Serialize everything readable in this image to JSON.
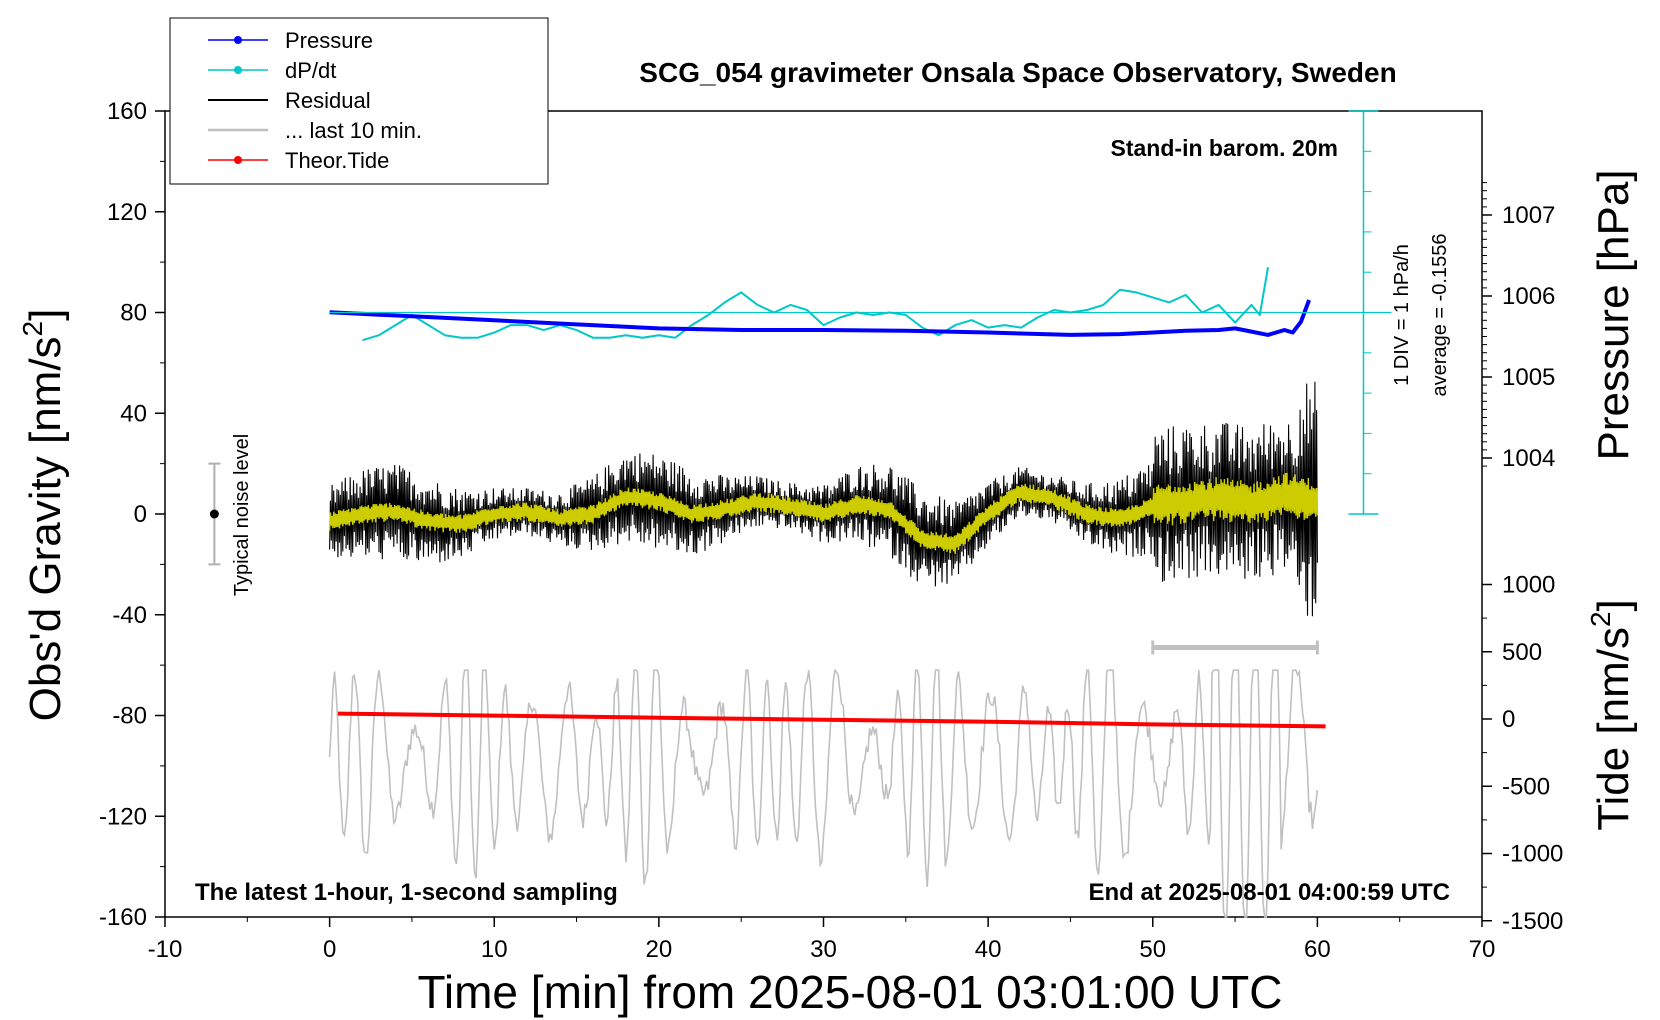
{
  "chart_data": {
    "type": "line",
    "title": "SCG_054 gravimeter Onsala Space Observatory, Sweden",
    "xlabel": "Time [min] from 2025-08-01 03:01:00 UTC",
    "ylabel_left_main": "Obs'd Gravity [nm/s",
    "ylabel_left_sup": "2",
    "ylabel_left_end": "]",
    "ylabel_right_pressure": "Pressure [hPa]",
    "ylabel_right_tide_main": "Tide [nm/s",
    "ylabel_right_tide_sup": "2",
    "ylabel_right_tide_end": "]",
    "xlim": [
      -10,
      70
    ],
    "ylim_left": [
      -160,
      160
    ],
    "x_ticks": [
      "-10",
      "0",
      "10",
      "20",
      "30",
      "40",
      "50",
      "60",
      "70"
    ],
    "y_ticks_left": [
      "160",
      "120",
      "80",
      "40",
      "0",
      "-40",
      "-80",
      "-120",
      "-160"
    ],
    "pressure_ticks": [
      "1007",
      "1006",
      "1005",
      "1004"
    ],
    "tide_ticks": [
      "1000",
      "500",
      "0",
      "-500",
      "-1000",
      "-1500"
    ],
    "annotations": {
      "stand_in": "Stand-in barom. 20m",
      "div_scale": "1 DIV = 1 hPa/h",
      "average": "average = -0.1556",
      "noise": "Typical noise level",
      "latest": "The latest 1-hour, 1-second sampling",
      "end_at": "End at 2025-08-01 04:00:59 UTC"
    },
    "legend": {
      "placement": "top-left",
      "entries": [
        "Pressure",
        "dP/dt",
        "Residual",
        "... last 10 min.",
        "Theor.Tide"
      ]
    },
    "series": [
      {
        "name": "Pressure",
        "color": "#0000ff",
        "axis": "pressure_hPa",
        "x": [
          0,
          5,
          10,
          15,
          20,
          25,
          30,
          35,
          40,
          45,
          48,
          50,
          52,
          54,
          55,
          56,
          57,
          58,
          58.5,
          59,
          59.5
        ],
        "y": [
          1005.8,
          1005.75,
          1005.7,
          1005.65,
          1005.6,
          1005.58,
          1005.58,
          1005.57,
          1005.55,
          1005.52,
          1005.53,
          1005.55,
          1005.57,
          1005.58,
          1005.6,
          1005.56,
          1005.52,
          1005.58,
          1005.55,
          1005.68,
          1005.95
        ]
      },
      {
        "name": "dP/dt",
        "color": "#00c8c8",
        "axis": "gravity",
        "x": [
          2,
          3,
          4,
          5,
          6,
          7,
          8,
          9,
          10,
          11,
          12,
          13,
          14,
          15,
          16,
          17,
          18,
          19,
          20,
          21,
          22,
          23,
          24,
          25,
          26,
          27,
          28,
          29,
          30,
          31,
          32,
          33,
          34,
          35,
          36,
          37,
          38,
          39,
          40,
          41,
          42,
          43,
          44,
          45,
          46,
          47,
          48,
          49,
          50,
          51,
          52,
          53,
          54,
          55,
          56,
          56.5,
          57
        ],
        "y": [
          69,
          71,
          75,
          79,
          75,
          71,
          70,
          70,
          72,
          75,
          75,
          73,
          75,
          73,
          70,
          70,
          71,
          70,
          71,
          70,
          75,
          79,
          84,
          88,
          83,
          80,
          83,
          81,
          75,
          78,
          80,
          79,
          80,
          79,
          74,
          71,
          75,
          77,
          74,
          75,
          74,
          78,
          81,
          80,
          81,
          83,
          89,
          88,
          86,
          84,
          87,
          80,
          83,
          76,
          83,
          79,
          98
        ]
      },
      {
        "name": "Residual smooth (yellow)",
        "color": "#cccc00",
        "axis": "gravity",
        "x": [
          0,
          2,
          4,
          6,
          8,
          10,
          12,
          14,
          16,
          18,
          20,
          22,
          24,
          26,
          28,
          30,
          32,
          34,
          36,
          38,
          40,
          42,
          44,
          46,
          48,
          50,
          52,
          54,
          56,
          58,
          60
        ],
        "y": [
          -3,
          0,
          1,
          -3,
          -4,
          0,
          1,
          -2,
          0,
          7,
          5,
          0,
          2,
          5,
          3,
          0,
          4,
          2,
          -10,
          -12,
          0,
          9,
          6,
          0,
          -2,
          3,
          5,
          6,
          4,
          8,
          5
        ]
      },
      {
        "name": "Theor.Tide",
        "color": "#ff0000",
        "axis": "tide",
        "x": [
          0.5,
          10,
          20,
          30,
          40,
          50,
          60.5
        ],
        "y": [
          40,
          25,
          10,
          -5,
          -20,
          -40,
          -55
        ]
      }
    ],
    "typical_noise_level": {
      "x": -7,
      "center": 0,
      "low": -20,
      "high": 20
    },
    "last10_range": {
      "x_start": 50,
      "x_end": 60,
      "y": -53
    }
  }
}
